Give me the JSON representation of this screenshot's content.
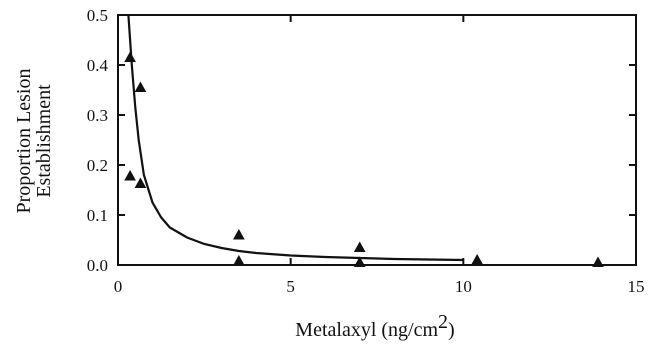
{
  "chart_data": {
    "type": "scatter",
    "xlabel": "Metalaxyl  (ng/cm",
    "xlabel_superscript": "2",
    "xlabel_close": ")",
    "ylabel_lines": [
      "Proportion Lesion",
      "Establishment"
    ],
    "xlim": [
      0,
      15
    ],
    "ylim": [
      0,
      0.5
    ],
    "x_ticks": [
      0,
      5,
      10,
      15
    ],
    "x_tick_labels": [
      "0",
      "5",
      "10",
      "15"
    ],
    "y_ticks": [
      0,
      0.1,
      0.2,
      0.3,
      0.4,
      0.5
    ],
    "y_tick_labels": [
      "0.0",
      "0.1",
      "0.2",
      "0.3",
      "0.4",
      "0.5"
    ],
    "grid": false,
    "legend": "none",
    "marker": "triangle",
    "series": [
      {
        "points": [
          {
            "x": 0.35,
            "y": 0.415
          },
          {
            "x": 0.35,
            "y": 0.178
          },
          {
            "x": 0.65,
            "y": 0.355
          },
          {
            "x": 0.65,
            "y": 0.163
          },
          {
            "x": 3.5,
            "y": 0.06
          },
          {
            "x": 3.5,
            "y": 0.008
          },
          {
            "x": 7.0,
            "y": 0.035
          },
          {
            "x": 7.0,
            "y": 0.005
          },
          {
            "x": 10.4,
            "y": 0.01
          },
          {
            "x": 13.9,
            "y": 0.005
          }
        ]
      }
    ],
    "fit_curve": {
      "points": [
        {
          "x": 0.3,
          "y": 0.5
        },
        {
          "x": 0.4,
          "y": 0.4
        },
        {
          "x": 0.5,
          "y": 0.315
        },
        {
          "x": 0.6,
          "y": 0.25
        },
        {
          "x": 0.75,
          "y": 0.18
        },
        {
          "x": 1.0,
          "y": 0.125
        },
        {
          "x": 1.25,
          "y": 0.095
        },
        {
          "x": 1.5,
          "y": 0.075
        },
        {
          "x": 2.0,
          "y": 0.055
        },
        {
          "x": 2.5,
          "y": 0.042
        },
        {
          "x": 3.0,
          "y": 0.034
        },
        {
          "x": 3.5,
          "y": 0.028
        },
        {
          "x": 4.0,
          "y": 0.024
        },
        {
          "x": 5.0,
          "y": 0.019
        },
        {
          "x": 6.0,
          "y": 0.016
        },
        {
          "x": 7.0,
          "y": 0.014
        },
        {
          "x": 8.0,
          "y": 0.012
        },
        {
          "x": 9.0,
          "y": 0.011
        },
        {
          "x": 10.0,
          "y": 0.01
        }
      ]
    }
  }
}
